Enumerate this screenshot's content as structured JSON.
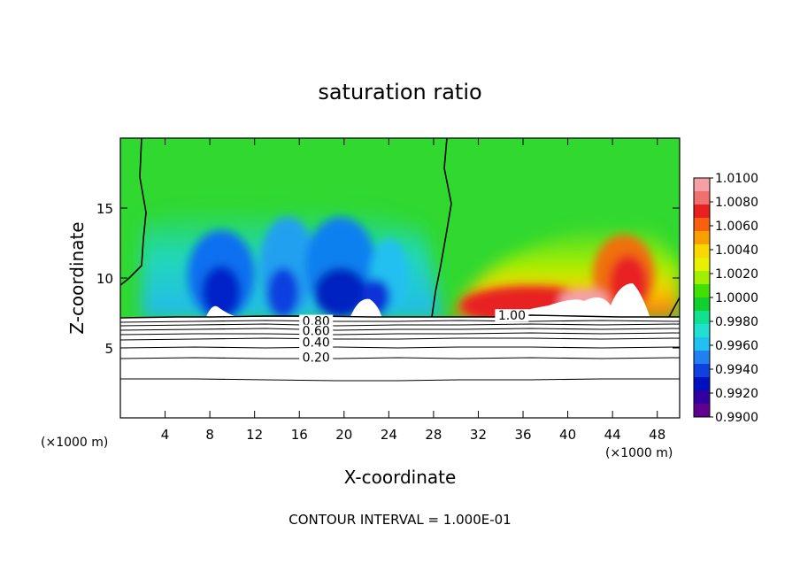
{
  "chart_data": {
    "type": "heatmap",
    "title": "saturation ratio",
    "xlabel": "X-coordinate",
    "ylabel": "Z-coordinate",
    "x_unit": "(×1000 m)",
    "x_ticks": [
      4,
      8,
      12,
      16,
      20,
      24,
      28,
      32,
      36,
      40,
      44,
      48
    ],
    "y_ticks": [
      5,
      10,
      15
    ],
    "xlim": [
      0,
      50
    ],
    "ylim": [
      0,
      20
    ],
    "colorbar": {
      "ticks": [
        "1.0100",
        "1.0080",
        "1.0060",
        "1.0040",
        "1.0020",
        "1.0000",
        "0.9980",
        "0.9960",
        "0.9940",
        "0.9920",
        "0.9900"
      ],
      "colors": [
        "#f4a0a8",
        "#f07070",
        "#e82020",
        "#f86010",
        "#f8a000",
        "#f8d800",
        "#e8f000",
        "#a0f000",
        "#40e000",
        "#10d030",
        "#10e090",
        "#20e0d0",
        "#20c0f0",
        "#2080f0",
        "#1040e0",
        "#0010c0",
        "#3000a0",
        "#600090"
      ],
      "range": [
        0.99,
        1.01
      ]
    },
    "contour_labels": [
      {
        "text": "1.00",
        "x": 35,
        "z": 7.2
      },
      {
        "text": "0.80",
        "x": 17.5,
        "z": 6.8
      },
      {
        "text": "0.60",
        "x": 17.5,
        "z": 6.1
      },
      {
        "text": "0.40",
        "x": 17.5,
        "z": 5.3
      },
      {
        "text": "0.20",
        "x": 17.5,
        "z": 4.2
      }
    ],
    "footer": "CONTOUR INTERVAL = 1.000E-01"
  }
}
